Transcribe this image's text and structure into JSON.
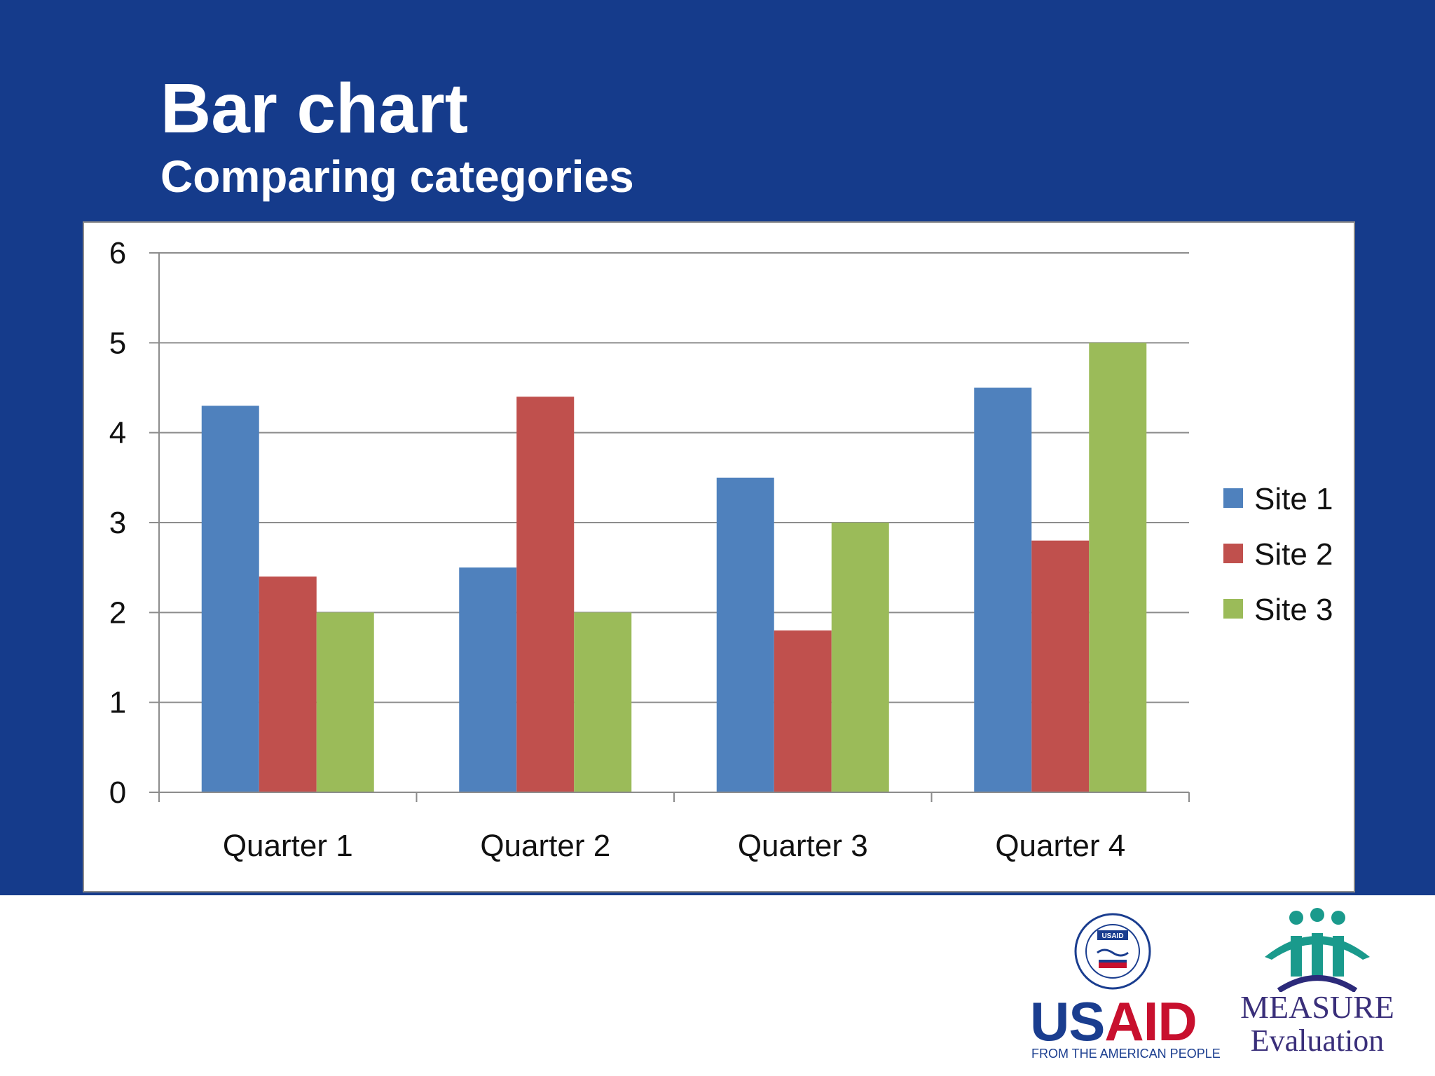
{
  "slide": {
    "title": "Bar chart",
    "subtitle": "Comparing categories",
    "colors": {
      "banner": "#153b8b",
      "site1": "#4f81bd",
      "site2": "#c0504d",
      "site3": "#9bbb59"
    }
  },
  "chart_data": {
    "type": "bar",
    "categories": [
      "Quarter 1",
      "Quarter 2",
      "Quarter 3",
      "Quarter 4"
    ],
    "series": [
      {
        "name": "Site 1",
        "values": [
          4.3,
          2.5,
          3.5,
          4.5
        ],
        "color": "#4f81bd"
      },
      {
        "name": "Site 2",
        "values": [
          2.4,
          4.4,
          1.8,
          2.8
        ],
        "color": "#c0504d"
      },
      {
        "name": "Site 3",
        "values": [
          2,
          2,
          3,
          5
        ],
        "color": "#9bbb59"
      }
    ],
    "ylim": [
      0,
      6
    ],
    "yticks": [
      "0",
      "1",
      "2",
      "3",
      "4",
      "5",
      "6"
    ],
    "grid": true,
    "legend": "right"
  },
  "logos": {
    "usaid": {
      "word_us": "US",
      "word_aid": "AID",
      "tagline": "FROM THE AMERICAN PEOPLE",
      "seal_text": "UNITED STATES AGENCY INTERNATIONAL DEVELOPMENT",
      "seal_badge": "USAID"
    },
    "measure": {
      "word": "MEASURE",
      "subword": "Evaluation"
    }
  }
}
